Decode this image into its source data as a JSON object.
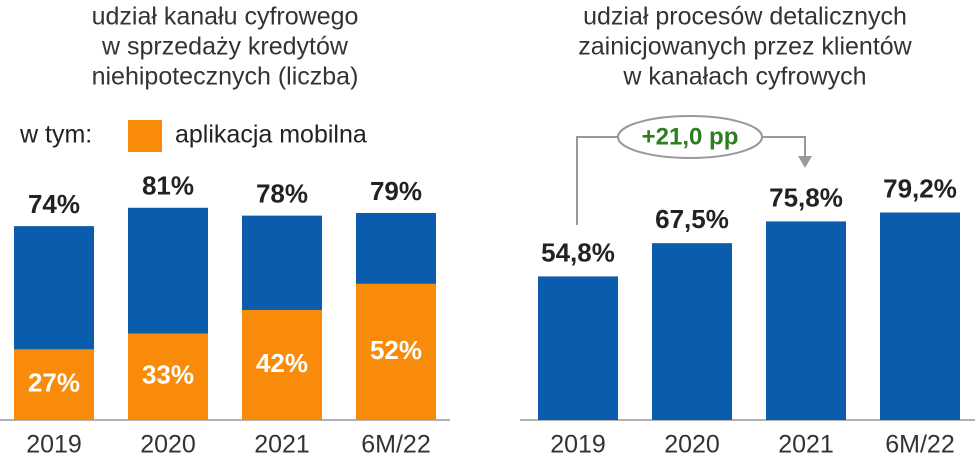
{
  "chart_data": [
    {
      "type": "bar_overlay",
      "title": [
        "udział kanału cyfrowego",
        "w sprzedaży kredytów",
        "niehipotecznych (liczba)"
      ],
      "legend_prefix": "w tym:",
      "categories": [
        "2019",
        "2020",
        "2021",
        "6M/22"
      ],
      "series": [
        {
          "color": "#0b5cad",
          "values": [
            74,
            81,
            78,
            79
          ],
          "value_labels": [
            "74%",
            "81%",
            "78%",
            "79%"
          ]
        },
        {
          "name": "aplikacja mobilna",
          "color": "#f98b0a",
          "values": [
            27,
            33,
            42,
            52
          ],
          "value_labels": [
            "27%",
            "33%",
            "42%",
            "52%"
          ]
        }
      ],
      "ylim": [
        0,
        100
      ]
    },
    {
      "type": "bar",
      "title": [
        "udział procesów detalicznych",
        "zainicjowanych przez klientów",
        "w kanałach cyfrowych"
      ],
      "categories": [
        "2019",
        "2020",
        "2021",
        "6M/22"
      ],
      "values": [
        54.8,
        67.5,
        75.8,
        79.2
      ],
      "value_labels": [
        "54,8%",
        "67,5%",
        "75,8%",
        "79,2%"
      ],
      "color": "#0b5cad",
      "annotation": "+21,0 pp",
      "ylim": [
        0,
        100
      ]
    }
  ]
}
